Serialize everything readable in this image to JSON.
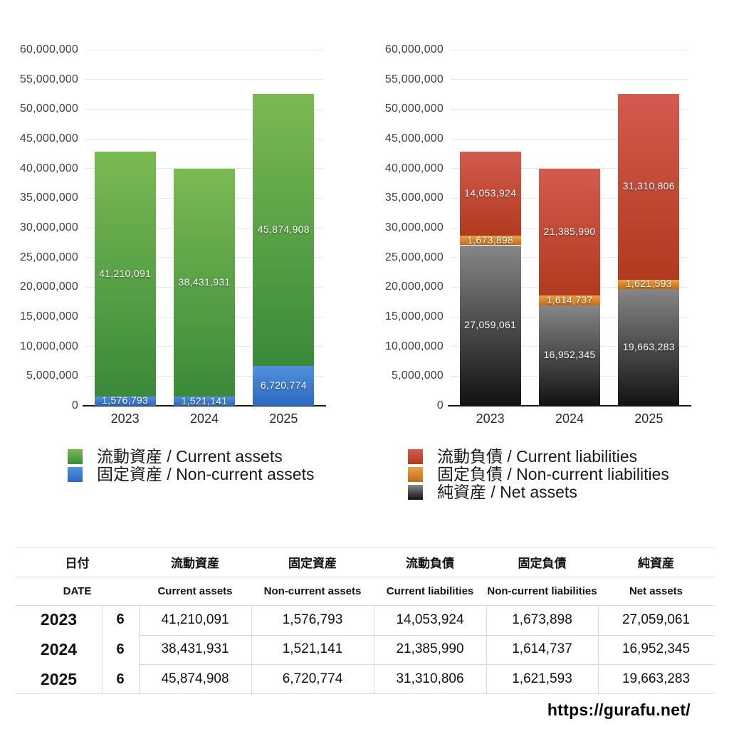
{
  "page": {
    "background": "#ffffff",
    "url_watermark": "https://gurafu.net/"
  },
  "chart_data": [
    {
      "type": "bar",
      "stacked": true,
      "title": "",
      "categories": [
        "2023",
        "2024",
        "2025"
      ],
      "series": [
        {
          "name": "固定資産 / Non-current assets",
          "values": [
            1576793,
            1521141,
            6720774
          ],
          "color_top": "#5191dc",
          "color_bottom": "#2b68bf"
        },
        {
          "name": "流動資産 / Current assets",
          "values": [
            41210091,
            38431931,
            45874908
          ],
          "color_top": "#7aba52",
          "color_bottom": "#3a8a3a"
        }
      ],
      "ylim": [
        0,
        60000000
      ],
      "y_step": 5000000,
      "grid": true,
      "value_labels": true,
      "legend_position": "bottom"
    },
    {
      "type": "bar",
      "stacked": true,
      "title": "",
      "categories": [
        "2023",
        "2024",
        "2025"
      ],
      "series": [
        {
          "name": "純資産 / Net assets",
          "values": [
            27059061,
            16952345,
            19663283
          ],
          "color_top": "#868686",
          "color_bottom": "#121212"
        },
        {
          "name": "固定負債 / Non-current liabilities",
          "values": [
            1673898,
            1614737,
            1621593
          ],
          "color_top": "#eaa14b",
          "color_bottom": "#c66c10"
        },
        {
          "name": "流動負債 / Current liabilities",
          "values": [
            14053924,
            21385990,
            31310806
          ],
          "color_top": "#d25b4f",
          "color_bottom": "#b13a1e"
        }
      ],
      "ylim": [
        0,
        60000000
      ],
      "y_step": 5000000,
      "grid": true,
      "value_labels": true,
      "legend_position": "bottom"
    }
  ],
  "legends": {
    "assets": [
      {
        "label": "流動資産 / Current assets",
        "color_top": "#7aba52",
        "color_bottom": "#3a8a3a"
      },
      {
        "label": "固定資産 / Non-current assets",
        "color_top": "#5191dc",
        "color_bottom": "#2b68bf"
      }
    ],
    "liabilities": [
      {
        "label": "流動負債 / Current liabilities",
        "color_top": "#d25b4f",
        "color_bottom": "#b13a1e"
      },
      {
        "label": "固定負債 / Non-current liabilities",
        "color_top": "#eaa14b",
        "color_bottom": "#c66c10"
      },
      {
        "label": "純資産 / Net assets",
        "color_top": "#868686",
        "color_bottom": "#121212"
      }
    ]
  },
  "table": {
    "headers_jp": [
      "日付",
      "流動資産",
      "固定資産",
      "流動負債",
      "固定負債",
      "純資産"
    ],
    "headers_en": [
      "DATE",
      "Current assets",
      "Non-current assets",
      "Current liabilities",
      "Non-current liabilities",
      "Net assets"
    ],
    "rows": [
      {
        "year": "2023",
        "month": "6",
        "values": [
          "41,210,091",
          "1,576,793",
          "14,053,924",
          "1,673,898",
          "27,059,061"
        ]
      },
      {
        "year": "2024",
        "month": "6",
        "values": [
          "38,431,931",
          "1,521,141",
          "21,385,990",
          "1,614,737",
          "16,952,345"
        ]
      },
      {
        "year": "2025",
        "month": "6",
        "values": [
          "45,874,908",
          "6,720,774",
          "31,310,806",
          "1,621,593",
          "19,663,283"
        ]
      }
    ]
  }
}
